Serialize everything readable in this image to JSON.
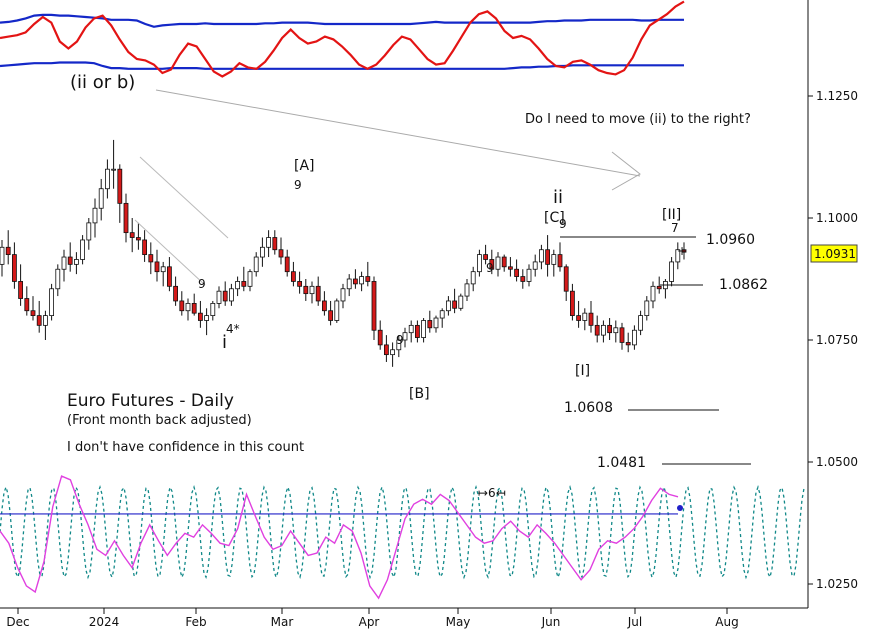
{
  "chart_data": [
    {
      "type": "line",
      "panel": "upper-oscillator",
      "series": [
        {
          "color": "#e31414",
          "values": [
            0.6,
            0.62,
            0.64,
            0.68,
            0.8,
            0.9,
            0.82,
            0.55,
            0.45,
            0.55,
            0.75,
            0.88,
            0.92,
            0.78,
            0.58,
            0.4,
            0.3,
            0.28,
            0.22,
            0.1,
            0.15,
            0.36,
            0.52,
            0.48,
            0.3,
            0.12,
            0.05,
            0.12,
            0.24,
            0.18,
            0.16,
            0.26,
            0.42,
            0.6,
            0.72,
            0.6,
            0.52,
            0.55,
            0.62,
            0.58,
            0.48,
            0.36,
            0.22,
            0.16,
            0.22,
            0.35,
            0.5,
            0.62,
            0.58,
            0.44,
            0.3,
            0.22,
            0.24,
            0.42,
            0.62,
            0.82,
            0.94,
            0.98,
            0.88,
            0.7,
            0.6,
            0.63,
            0.58,
            0.45,
            0.3,
            0.2,
            0.18,
            0.26,
            0.28,
            0.22,
            0.14,
            0.1,
            0.08,
            0.14,
            0.32,
            0.58,
            0.78,
            0.86,
            0.94,
            1.05,
            1.12
          ]
        },
        {
          "color": "#1428c8",
          "values": [
            0.82,
            0.83,
            0.85,
            0.88,
            0.92,
            0.93,
            0.93,
            0.92,
            0.92,
            0.91,
            0.9,
            0.89,
            0.88,
            0.86,
            0.86,
            0.86,
            0.85,
            0.8,
            0.76,
            0.78,
            0.79,
            0.8,
            0.8,
            0.8,
            0.81,
            0.8,
            0.8,
            0.8,
            0.8,
            0.8,
            0.8,
            0.81,
            0.81,
            0.82,
            0.82,
            0.82,
            0.82,
            0.81,
            0.8,
            0.8,
            0.8,
            0.8,
            0.8,
            0.8,
            0.8,
            0.8,
            0.8,
            0.8,
            0.8,
            0.81,
            0.82,
            0.83,
            0.82,
            0.82,
            0.82,
            0.82,
            0.82,
            0.82,
            0.82,
            0.82,
            0.82,
            0.82,
            0.82,
            0.83,
            0.84,
            0.84,
            0.85,
            0.85,
            0.85,
            0.86,
            0.86,
            0.86,
            0.86,
            0.86,
            0.86,
            0.85,
            0.85,
            0.86,
            0.86,
            0.86,
            0.86
          ]
        },
        {
          "color": "#1428c8",
          "values": [
            0.2,
            0.21,
            0.22,
            0.23,
            0.24,
            0.24,
            0.24,
            0.25,
            0.25,
            0.25,
            0.25,
            0.24,
            0.2,
            0.17,
            0.17,
            0.16,
            0.16,
            0.16,
            0.16,
            0.16,
            0.17,
            0.17,
            0.17,
            0.17,
            0.16,
            0.16,
            0.16,
            0.16,
            0.16,
            0.16,
            0.16,
            0.16,
            0.16,
            0.16,
            0.16,
            0.16,
            0.16,
            0.16,
            0.16,
            0.16,
            0.16,
            0.16,
            0.16,
            0.16,
            0.16,
            0.16,
            0.16,
            0.16,
            0.16,
            0.16,
            0.16,
            0.16,
            0.16,
            0.16,
            0.16,
            0.16,
            0.16,
            0.16,
            0.16,
            0.16,
            0.17,
            0.18,
            0.18,
            0.19,
            0.19,
            0.2,
            0.2,
            0.21,
            0.21,
            0.21,
            0.21,
            0.21,
            0.21,
            0.21,
            0.21,
            0.21,
            0.21,
            0.21,
            0.21,
            0.21,
            0.21
          ]
        }
      ]
    },
    {
      "type": "candlestick",
      "panel": "price",
      "title": "Euro Futures - Daily",
      "subtitle": "(Front month back adjusted)",
      "note": "I don't have confidence in this count",
      "y_ticks": [
        "1.0250",
        "1.0500",
        "1.0750",
        "1.1000",
        "1.1250"
      ],
      "x_ticks": [
        "Dec",
        "2024",
        "Feb",
        "Mar",
        "Apr",
        "May",
        "Jun",
        "Jul",
        "Aug"
      ],
      "last_price": "1.0931",
      "candles": [
        [
          1.0905,
          1.0955,
          1.088,
          1.094
        ],
        [
          1.094,
          1.0975,
          1.0905,
          1.0925
        ],
        [
          1.0925,
          1.095,
          1.0855,
          1.087
        ],
        [
          1.087,
          1.0905,
          1.082,
          1.0835
        ],
        [
          1.0835,
          1.086,
          1.08,
          1.081
        ],
        [
          1.081,
          1.084,
          1.079,
          1.08
        ],
        [
          1.08,
          1.083,
          1.0765,
          1.078
        ],
        [
          1.078,
          1.081,
          1.075,
          1.08
        ],
        [
          1.08,
          1.0865,
          1.079,
          1.0855
        ],
        [
          1.0855,
          1.0905,
          1.084,
          1.0895
        ],
        [
          1.0895,
          1.0935,
          1.087,
          1.092
        ],
        [
          1.092,
          1.095,
          1.089,
          1.0905
        ],
        [
          1.0905,
          1.093,
          1.0885,
          1.0915
        ],
        [
          1.0915,
          1.0965,
          1.0905,
          1.0955
        ],
        [
          1.0955,
          1.1,
          1.0935,
          1.099
        ],
        [
          1.099,
          1.104,
          1.096,
          1.102
        ],
        [
          1.102,
          1.108,
          1.0995,
          1.106
        ],
        [
          1.106,
          1.112,
          1.104,
          1.11
        ],
        [
          1.11,
          1.116,
          1.106,
          1.11
        ],
        [
          1.11,
          1.111,
          1.099,
          1.103
        ],
        [
          1.103,
          1.105,
          1.095,
          1.097
        ],
        [
          1.097,
          1.1,
          1.093,
          1.096
        ],
        [
          1.096,
          1.099,
          1.0935,
          1.0955
        ],
        [
          1.0955,
          1.0975,
          1.091,
          1.0925
        ],
        [
          1.0925,
          1.095,
          1.0885,
          1.091
        ],
        [
          1.091,
          1.0935,
          1.087,
          1.089
        ],
        [
          1.089,
          1.091,
          1.086,
          1.09
        ],
        [
          1.09,
          1.092,
          1.085,
          1.086
        ],
        [
          1.086,
          1.088,
          1.082,
          1.083
        ],
        [
          1.083,
          1.085,
          1.08,
          1.081
        ],
        [
          1.081,
          1.0835,
          1.079,
          1.0825
        ],
        [
          1.0825,
          1.0845,
          1.08,
          1.0805
        ],
        [
          1.0805,
          1.083,
          1.0775,
          1.079
        ],
        [
          1.079,
          1.0815,
          1.076,
          1.08
        ],
        [
          1.08,
          1.083,
          1.079,
          1.0825
        ],
        [
          1.0825,
          1.086,
          1.0815,
          1.085
        ],
        [
          1.085,
          1.087,
          1.082,
          1.083
        ],
        [
          1.083,
          1.0865,
          1.082,
          1.0855
        ],
        [
          1.0855,
          1.088,
          1.084,
          1.087
        ],
        [
          1.087,
          1.09,
          1.085,
          1.086
        ],
        [
          1.086,
          1.0895,
          1.085,
          1.089
        ],
        [
          1.089,
          1.093,
          1.088,
          1.092
        ],
        [
          1.092,
          1.096,
          1.09,
          1.094
        ],
        [
          1.094,
          1.0975,
          1.092,
          1.096
        ],
        [
          1.096,
          1.0975,
          1.0925,
          1.0935
        ],
        [
          1.0935,
          1.096,
          1.0905,
          1.092
        ],
        [
          1.092,
          1.0935,
          1.088,
          1.089
        ],
        [
          1.089,
          1.091,
          1.086,
          1.087
        ],
        [
          1.087,
          1.089,
          1.0845,
          1.086
        ],
        [
          1.086,
          1.0875,
          1.083,
          1.0845
        ],
        [
          1.0845,
          1.087,
          1.0825,
          1.086
        ],
        [
          1.086,
          1.088,
          1.082,
          1.083
        ],
        [
          1.083,
          1.085,
          1.08,
          1.081
        ],
        [
          1.081,
          1.083,
          1.078,
          1.079
        ],
        [
          1.079,
          1.0835,
          1.0785,
          1.083
        ],
        [
          1.083,
          1.0865,
          1.0815,
          1.0855
        ],
        [
          1.0855,
          1.0885,
          1.084,
          1.0875
        ],
        [
          1.0875,
          1.0895,
          1.0855,
          1.0865
        ],
        [
          1.0865,
          1.089,
          1.085,
          1.088
        ],
        [
          1.088,
          1.091,
          1.086,
          1.087
        ],
        [
          1.087,
          1.088,
          1.075,
          1.077
        ],
        [
          1.077,
          1.079,
          1.073,
          1.074
        ],
        [
          1.074,
          1.076,
          1.0705,
          1.072
        ],
        [
          1.072,
          1.0745,
          1.0695,
          1.073
        ],
        [
          1.073,
          1.076,
          1.0715,
          1.075
        ],
        [
          1.075,
          1.0775,
          1.0735,
          1.0765
        ],
        [
          1.0765,
          1.079,
          1.0745,
          1.078
        ],
        [
          1.078,
          1.079,
          1.0745,
          1.0755
        ],
        [
          1.0755,
          1.0795,
          1.0745,
          1.079
        ],
        [
          1.079,
          1.081,
          1.0765,
          1.0775
        ],
        [
          1.0775,
          1.08,
          1.0765,
          1.0795
        ],
        [
          1.0795,
          1.0815,
          1.0775,
          1.081
        ],
        [
          1.081,
          1.084,
          1.08,
          1.083
        ],
        [
          1.083,
          1.0855,
          1.0805,
          1.0815
        ],
        [
          1.0815,
          1.0845,
          1.081,
          1.084
        ],
        [
          1.084,
          1.0875,
          1.083,
          1.0865
        ],
        [
          1.0865,
          1.09,
          1.085,
          1.089
        ],
        [
          1.089,
          1.0935,
          1.088,
          1.0925
        ],
        [
          1.0925,
          1.0945,
          1.0905,
          1.0915
        ],
        [
          1.0915,
          1.0935,
          1.0885,
          1.0895
        ],
        [
          1.0895,
          1.093,
          1.088,
          1.092
        ],
        [
          1.092,
          1.0925,
          1.089,
          1.09
        ],
        [
          1.09,
          1.092,
          1.088,
          1.0895
        ],
        [
          1.0895,
          1.0915,
          1.087,
          1.088
        ],
        [
          1.088,
          1.0895,
          1.0855,
          1.087
        ],
        [
          1.087,
          1.0905,
          1.086,
          1.0895
        ],
        [
          1.0895,
          1.0925,
          1.088,
          1.091
        ],
        [
          1.091,
          1.0945,
          1.0895,
          1.0935
        ],
        [
          1.0935,
          1.0965,
          1.088,
          1.0905
        ],
        [
          1.0905,
          1.0935,
          1.088,
          1.0925
        ],
        [
          1.0925,
          1.095,
          1.089,
          1.09
        ],
        [
          1.09,
          1.0905,
          1.083,
          1.085
        ],
        [
          1.085,
          1.0865,
          1.079,
          1.08
        ],
        [
          1.08,
          1.083,
          1.0775,
          1.079
        ],
        [
          1.079,
          1.0815,
          1.077,
          1.0805
        ],
        [
          1.0805,
          1.083,
          1.0765,
          1.078
        ],
        [
          1.078,
          1.08,
          1.0745,
          1.076
        ],
        [
          1.076,
          1.079,
          1.0745,
          1.078
        ],
        [
          1.078,
          1.0795,
          1.075,
          1.0765
        ],
        [
          1.0765,
          1.079,
          1.0745,
          1.0775
        ],
        [
          1.0775,
          1.0785,
          1.073,
          1.0745
        ],
        [
          1.0745,
          1.0765,
          1.0725,
          1.074
        ],
        [
          1.074,
          1.078,
          1.073,
          1.077
        ],
        [
          1.077,
          1.081,
          1.076,
          1.08
        ],
        [
          1.08,
          1.084,
          1.079,
          1.083
        ],
        [
          1.083,
          1.087,
          1.0815,
          1.086
        ],
        [
          1.086,
          1.088,
          1.0845,
          1.0855
        ],
        [
          1.0855,
          1.0875,
          1.0835,
          1.087
        ],
        [
          1.087,
          1.092,
          1.086,
          1.091
        ],
        [
          1.091,
          1.095,
          1.0895,
          1.0935
        ],
        [
          1.0935,
          1.095,
          1.0915,
          1.093
        ]
      ],
      "annotations": [
        {
          "text": "(ii or b)",
          "color": "#333333"
        },
        {
          "text": "Do I need to move (ii) to the right?",
          "color": "#111111"
        },
        {
          "text": "[A]",
          "color": "#111111"
        },
        {
          "text": "9",
          "color": "#d22020"
        },
        {
          "text": "9",
          "color": "#2020c8"
        },
        {
          "text": "4*",
          "color": "#a09020"
        },
        {
          "text": "i",
          "color": "#222222"
        },
        {
          "text": "9",
          "color": "#2020c8"
        },
        {
          "text": "[B]",
          "color": "#111111"
        },
        {
          "text": "9",
          "color": "#d22020"
        },
        {
          "text": "ii",
          "color": "#222222"
        },
        {
          "text": "[C]",
          "color": "#111111"
        },
        {
          "text": "9",
          "color": "#d22020"
        },
        {
          "text": "[I]",
          "color": "#111111"
        },
        {
          "text": "[II]",
          "color": "#111111"
        },
        {
          "text": "7",
          "color": "#d22020"
        }
      ],
      "levels": [
        "1.0960",
        "1.0862",
        "1.0608",
        "1.0481"
      ]
    },
    {
      "type": "line",
      "panel": "lower-oscillator",
      "marker": "↦6↤",
      "series": [
        {
          "color": "#e040e0",
          "values": [
            0.5,
            0.4,
            0.2,
            0.05,
            0.0,
            0.25,
            0.7,
            0.95,
            0.92,
            0.72,
            0.55,
            0.35,
            0.3,
            0.42,
            0.3,
            0.2,
            0.4,
            0.55,
            0.42,
            0.3,
            0.4,
            0.48,
            0.45,
            0.55,
            0.48,
            0.4,
            0.38,
            0.52,
            0.8,
            0.62,
            0.45,
            0.35,
            0.38,
            0.5,
            0.4,
            0.3,
            0.32,
            0.45,
            0.4,
            0.55,
            0.5,
            0.32,
            0.05,
            -0.05,
            0.1,
            0.35,
            0.6,
            0.72,
            0.76,
            0.72,
            0.8,
            0.75,
            0.65,
            0.55,
            0.45,
            0.4,
            0.42,
            0.52,
            0.58,
            0.5,
            0.45,
            0.55,
            0.48,
            0.4,
            0.3,
            0.2,
            0.1,
            0.18,
            0.35,
            0.42,
            0.4,
            0.45,
            0.52,
            0.62,
            0.75,
            0.85,
            0.8,
            0.78
          ]
        },
        {
          "color": "#2020c8",
          "values": [
            0.64,
            0.64
          ]
        },
        {
          "color": "#108888",
          "values": [
            0.12,
            0.86
          ]
        }
      ]
    }
  ]
}
